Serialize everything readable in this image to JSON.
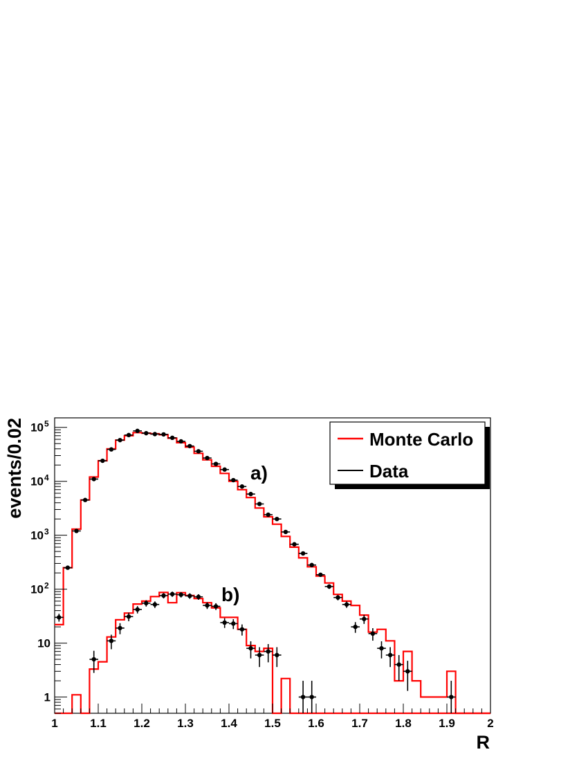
{
  "chart_data": {
    "type": "line",
    "xlabel": "R",
    "ylabel": "events/0.02",
    "xlim": [
      1,
      2
    ],
    "ylim": [
      0.5,
      150000
    ],
    "yscale": "log",
    "grid": false,
    "legend_placement": "top-right",
    "legend": [
      {
        "label": "Monte Carlo",
        "color": "#ff0000"
      },
      {
        "label": "Data",
        "color": "#000000"
      }
    ],
    "annotations": [
      {
        "text": "a)",
        "x": 1.465,
        "y": 12000
      },
      {
        "text": "b)",
        "x": 1.405,
        "y": 75
      }
    ],
    "x_ticks": [
      {
        "value": 1,
        "label": "1"
      },
      {
        "value": 1.1,
        "label": "1.1"
      },
      {
        "value": 1.2,
        "label": "1.2"
      },
      {
        "value": 1.3,
        "label": "1.3"
      },
      {
        "value": 1.4,
        "label": "1.4"
      },
      {
        "value": 1.5,
        "label": "1.5"
      },
      {
        "value": 1.6,
        "label": "1.6"
      },
      {
        "value": 1.7,
        "label": "1.7"
      },
      {
        "value": 1.8,
        "label": "1.8"
      },
      {
        "value": 1.9,
        "label": "1.9"
      },
      {
        "value": 2,
        "label": "2"
      }
    ],
    "y_ticks": [
      {
        "value": 1,
        "base": "1",
        "exp": ""
      },
      {
        "value": 10,
        "base": "10",
        "exp": ""
      },
      {
        "value": 100,
        "base": "10",
        "exp": "2"
      },
      {
        "value": 1000,
        "base": "10",
        "exp": "3"
      },
      {
        "value": 10000,
        "base": "10",
        "exp": "4"
      },
      {
        "value": 100000,
        "base": "10",
        "exp": "5"
      }
    ],
    "bin_edges_start": 1.0,
    "bin_width": 0.02,
    "series": [
      {
        "name": "Monte Carlo",
        "group": "a)",
        "kind": "step",
        "color": "#ff0000",
        "values": [
          22,
          250,
          1300,
          4500,
          12000,
          24000,
          40000,
          58000,
          70000,
          80000,
          78000,
          76000,
          73000,
          63000,
          52000,
          43000,
          33000,
          25000,
          19000,
          14000,
          10000,
          7000,
          5000,
          3200,
          2200,
          1600,
          950,
          600,
          380,
          260,
          175,
          130,
          80,
          60,
          50,
          33,
          16,
          18,
          11,
          2,
          7,
          2,
          1,
          1,
          1,
          3,
          0,
          0,
          0,
          0
        ]
      },
      {
        "name": "Data",
        "group": "a)",
        "kind": "points",
        "color": "#000000",
        "x": [
          1.01,
          1.03,
          1.05,
          1.07,
          1.09,
          1.11,
          1.13,
          1.15,
          1.17,
          1.19,
          1.21,
          1.23,
          1.25,
          1.27,
          1.29,
          1.31,
          1.33,
          1.35,
          1.37,
          1.39,
          1.41,
          1.43,
          1.45,
          1.47,
          1.49,
          1.51,
          1.53,
          1.55,
          1.57,
          1.59,
          1.61,
          1.63,
          1.65,
          1.67,
          1.69,
          1.71,
          1.73,
          1.75,
          1.77,
          1.79,
          1.81,
          1.91
        ],
        "y": [
          30,
          250,
          1200,
          4500,
          11000,
          24000,
          39000,
          58000,
          72000,
          86000,
          78000,
          75000,
          74000,
          64000,
          55000,
          45000,
          36000,
          27000,
          21000,
          16500,
          10500,
          8000,
          5800,
          3800,
          2400,
          2000,
          1150,
          680,
          460,
          280,
          185,
          112,
          70,
          52,
          20,
          28,
          15,
          8,
          6,
          4,
          3,
          1
        ],
        "y_err": [
          5,
          16,
          35,
          67,
          105,
          155,
          197,
          241,
          268,
          293,
          279,
          274,
          272,
          253,
          235,
          212,
          190,
          164,
          145,
          128,
          102,
          89,
          76,
          62,
          49,
          45,
          34,
          26,
          21,
          17,
          14,
          11,
          8,
          7,
          4.5,
          5.3,
          3.9,
          2.8,
          2.4,
          2,
          1.7,
          1
        ]
      },
      {
        "name": "Monte Carlo",
        "group": "b)",
        "kind": "step",
        "color": "#ff0000",
        "values": [
          0,
          0,
          1.1,
          0,
          3.3,
          4.5,
          13,
          27,
          36,
          53,
          60,
          73,
          87,
          56,
          86,
          76,
          67,
          56,
          45,
          30,
          30,
          18,
          9,
          7,
          8,
          0,
          2.2,
          0,
          0,
          0,
          0,
          0,
          0,
          0,
          0,
          0,
          0,
          0,
          0,
          0,
          0,
          0,
          0,
          0,
          0,
          0,
          0,
          0,
          0,
          0
        ]
      },
      {
        "name": "Data",
        "group": "b)",
        "kind": "points",
        "color": "#000000",
        "x": [
          1.09,
          1.13,
          1.15,
          1.17,
          1.19,
          1.21,
          1.23,
          1.25,
          1.27,
          1.29,
          1.31,
          1.33,
          1.35,
          1.37,
          1.39,
          1.41,
          1.43,
          1.45,
          1.47,
          1.49,
          1.51,
          1.57,
          1.59
        ],
        "y": [
          5,
          11,
          19,
          31,
          42,
          55,
          52,
          76,
          81,
          79,
          75,
          72,
          50,
          48,
          24,
          23,
          18,
          8,
          6,
          7,
          6,
          1,
          1
        ],
        "y_err": [
          2.2,
          3.3,
          4.4,
          5.6,
          6.5,
          7.4,
          7.2,
          8.7,
          9,
          8.9,
          8.7,
          8.5,
          7.1,
          6.9,
          4.9,
          4.8,
          4.2,
          2.8,
          2.4,
          2.6,
          2.4,
          1,
          1
        ]
      }
    ]
  }
}
